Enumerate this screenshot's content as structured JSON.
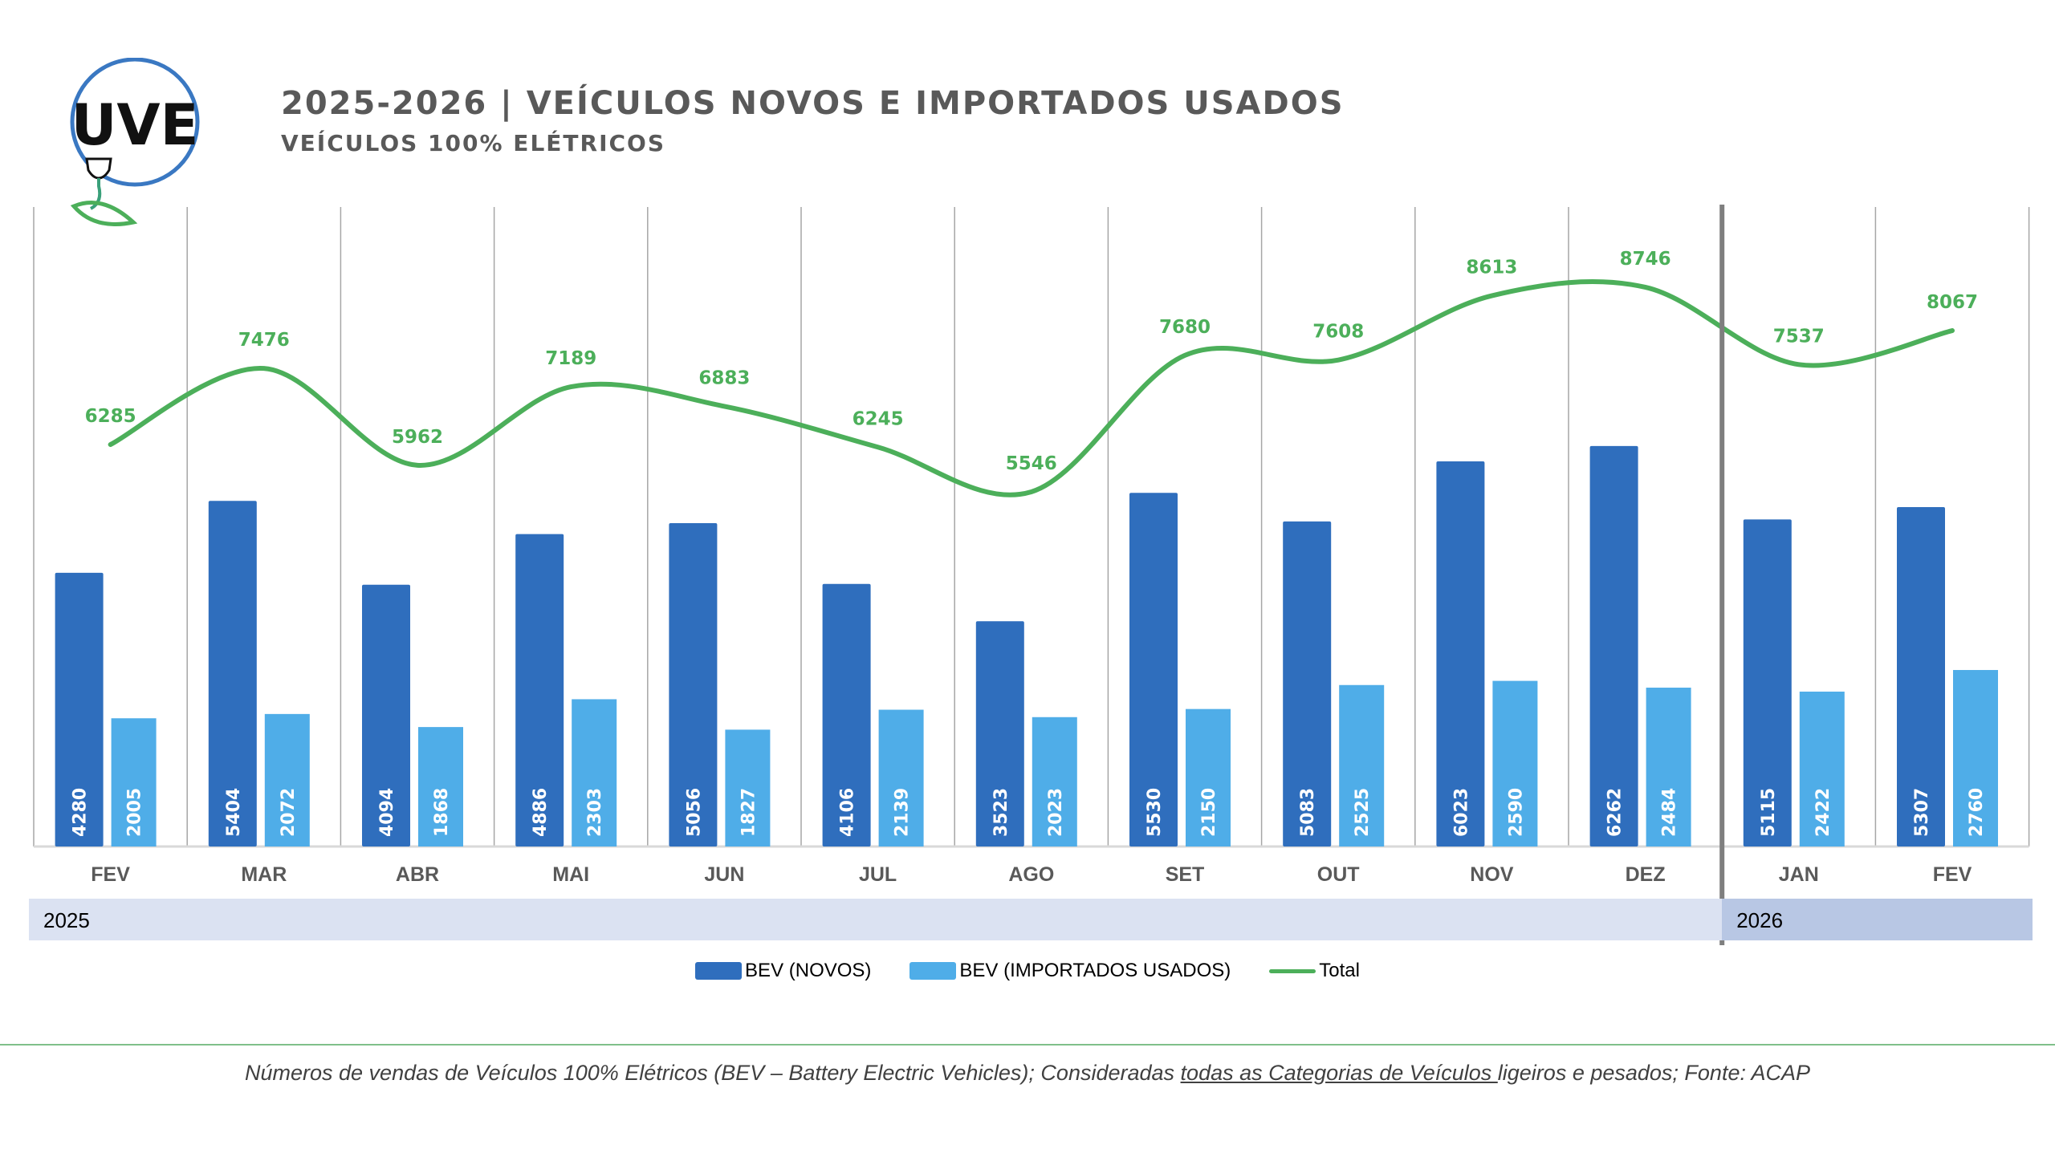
{
  "header": {
    "logo_text": "UVE",
    "title": "2025-2026 | VEÍCULOS NOVOS E IMPORTADOS USADOS",
    "subtitle": "VEÍCULOS 100% ELÉTRICOS"
  },
  "colors": {
    "novos": "#2f6ebd",
    "importados": "#4fade8",
    "total": "#4caf5a",
    "logo_ring": "#3a78c2",
    "year_band_2025": "#dbe2f2",
    "year_band_2026": "#b8c7e4",
    "title_text": "#595959"
  },
  "chart_data": {
    "type": "bar",
    "title": "2025-2026 | VEÍCULOS NOVOS E IMPORTADOS USADOS",
    "subtitle": "VEÍCULOS 100% ELÉTRICOS",
    "categories": [
      "FEV",
      "MAR",
      "ABR",
      "MAI",
      "JUN",
      "JUL",
      "AGO",
      "SET",
      "OUT",
      "NOV",
      "DEZ",
      "JAN",
      "FEV"
    ],
    "groups": [
      {
        "label": "2025",
        "from": 0,
        "to": 10
      },
      {
        "label": "2026",
        "from": 11,
        "to": 12
      }
    ],
    "series": [
      {
        "name": "BEV (NOVOS)",
        "type": "bar",
        "values": [
          4280,
          5404,
          4094,
          4886,
          5056,
          4106,
          3523,
          5530,
          5083,
          6023,
          6262,
          5115,
          5307
        ]
      },
      {
        "name": "BEV (IMPORTADOS USADOS)",
        "type": "bar",
        "values": [
          2005,
          2072,
          1868,
          2303,
          1827,
          2139,
          2023,
          2150,
          2525,
          2590,
          2484,
          2422,
          2760
        ]
      },
      {
        "name": "Total",
        "type": "line",
        "values": [
          6285,
          7476,
          5962,
          7189,
          6883,
          6245,
          5546,
          7680,
          7608,
          8613,
          8746,
          7537,
          8067
        ]
      }
    ],
    "xlabel": "",
    "ylabel": "",
    "ylim": [
      0,
      10000
    ],
    "grid": "vertical separators between months",
    "legend": "bottom-center",
    "yaxis_visible": false
  },
  "legend": {
    "items": [
      {
        "label": "BEV (NOVOS)",
        "kind": "bar"
      },
      {
        "label": "BEV (IMPORTADOS USADOS)",
        "kind": "bar"
      },
      {
        "label": "Total",
        "kind": "line"
      }
    ]
  },
  "footer": {
    "text_before": "Números de vendas de Veículos 100% Elétricos (BEV – Battery Electric Vehicles); Consideradas ",
    "text_underlined": "todas as Categorias de Veículos ",
    "text_after": "ligeiros e pesados; Fonte: ACAP"
  }
}
